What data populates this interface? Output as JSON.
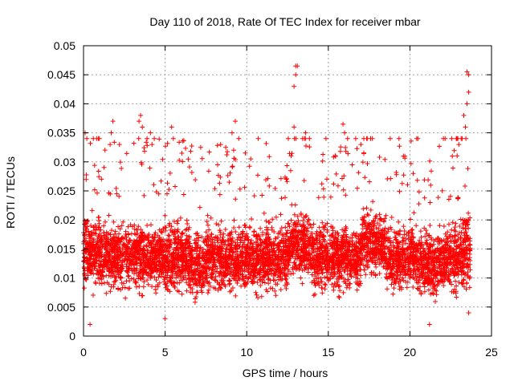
{
  "chart_data": {
    "type": "scatter",
    "title": "Day 110 of 2018, Rate Of TEC Index for receiver mbar",
    "xlabel": "GPS time / hours",
    "ylabel": "ROTI / TECUs",
    "xlim": [
      0,
      25
    ],
    "ylim": [
      0,
      0.05
    ],
    "xticks": [
      "0",
      "5",
      "10",
      "15",
      "20",
      "25"
    ],
    "yticks": [
      "0",
      "0.005",
      "0.01",
      "0.015",
      "0.02",
      "0.025",
      "0.03",
      "0.035",
      "0.04",
      "0.045",
      "0.05"
    ],
    "grid": true,
    "marker": "+",
    "color": "#ff0000",
    "series": [
      {
        "name": "ROTI",
        "description": "dense scatter of ROTI samples, mostly 0.005-0.025 TECU, extending from ~0 to 23.7 h",
        "data_range_hours": [
          0,
          23.7
        ],
        "typical_band": [
          0.005,
          0.025
        ],
        "highlights": [
          {
            "x": 0.1,
            "y": 0.035
          },
          {
            "x": 0.2,
            "y": 0.034
          },
          {
            "x": 0.6,
            "y": 0.034
          },
          {
            "x": 0.4,
            "y": 0.002
          },
          {
            "x": 1.8,
            "y": 0.037
          },
          {
            "x": 1.7,
            "y": 0.035
          },
          {
            "x": 2.2,
            "y": 0.033
          },
          {
            "x": 3.5,
            "y": 0.038
          },
          {
            "x": 3.4,
            "y": 0.037
          },
          {
            "x": 3.6,
            "y": 0.036
          },
          {
            "x": 4.1,
            "y": 0.035
          },
          {
            "x": 4.2,
            "y": 0.033
          },
          {
            "x": 5.4,
            "y": 0.036
          },
          {
            "x": 5.5,
            "y": 0.034
          },
          {
            "x": 5.0,
            "y": 0.003
          },
          {
            "x": 9.1,
            "y": 0.035
          },
          {
            "x": 9.3,
            "y": 0.037
          },
          {
            "x": 9.2,
            "y": 0.032
          },
          {
            "x": 8.4,
            "y": 0.033
          },
          {
            "x": 13.0,
            "y": 0.0465
          },
          {
            "x": 13.1,
            "y": 0.0465
          },
          {
            "x": 13.0,
            "y": 0.045
          },
          {
            "x": 12.9,
            "y": 0.043
          },
          {
            "x": 12.9,
            "y": 0.036
          },
          {
            "x": 13.6,
            "y": 0.035
          },
          {
            "x": 15.9,
            "y": 0.0365
          },
          {
            "x": 16.0,
            "y": 0.035
          },
          {
            "x": 17.0,
            "y": 0.033
          },
          {
            "x": 17.7,
            "y": 0.034
          },
          {
            "x": 19.6,
            "y": 0.031
          },
          {
            "x": 21.2,
            "y": 0.002
          },
          {
            "x": 20.2,
            "y": 0.028
          },
          {
            "x": 23.5,
            "y": 0.0455
          },
          {
            "x": 23.6,
            "y": 0.045
          },
          {
            "x": 23.6,
            "y": 0.042
          },
          {
            "x": 23.5,
            "y": 0.04
          },
          {
            "x": 23.3,
            "y": 0.038
          },
          {
            "x": 23.4,
            "y": 0.036
          },
          {
            "x": 23.2,
            "y": 0.034
          },
          {
            "x": 23.0,
            "y": 0.033
          },
          {
            "x": 22.6,
            "y": 0.031
          },
          {
            "x": 23.6,
            "y": 0.004
          }
        ]
      }
    ]
  }
}
